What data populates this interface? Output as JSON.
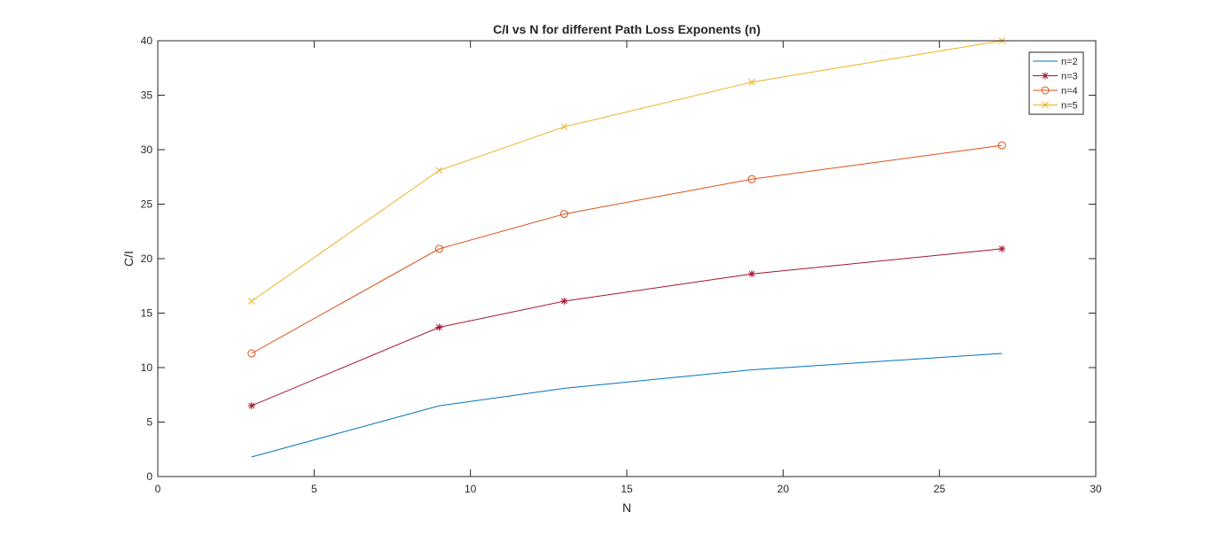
{
  "chart_data": {
    "type": "line",
    "title": "C/I vs N for different Path Loss Exponents (n)",
    "xlabel": "N",
    "ylabel": "C/I",
    "xlim": [
      0,
      30
    ],
    "ylim": [
      0,
      40
    ],
    "xticks": [
      0,
      5,
      10,
      15,
      20,
      25,
      30
    ],
    "yticks": [
      0,
      5,
      10,
      15,
      20,
      25,
      30,
      35,
      40
    ],
    "grid": false,
    "legend_position": "top-right",
    "x": [
      3,
      9,
      13,
      19,
      27
    ],
    "series": [
      {
        "name": "n=2",
        "values": [
          1.8,
          6.5,
          8.1,
          9.8,
          11.3
        ],
        "color": "#0072BD",
        "marker": "none"
      },
      {
        "name": "n=3",
        "values": [
          6.5,
          13.7,
          16.1,
          18.6,
          20.9
        ],
        "color": "#A2142F",
        "marker": "asterisk"
      },
      {
        "name": "n=4",
        "values": [
          11.3,
          20.9,
          24.1,
          27.3,
          30.4
        ],
        "color": "#D95319",
        "marker": "circle"
      },
      {
        "name": "n=5",
        "values": [
          16.1,
          28.1,
          32.1,
          36.2,
          40.0
        ],
        "color": "#EDB120",
        "marker": "cross"
      }
    ]
  }
}
